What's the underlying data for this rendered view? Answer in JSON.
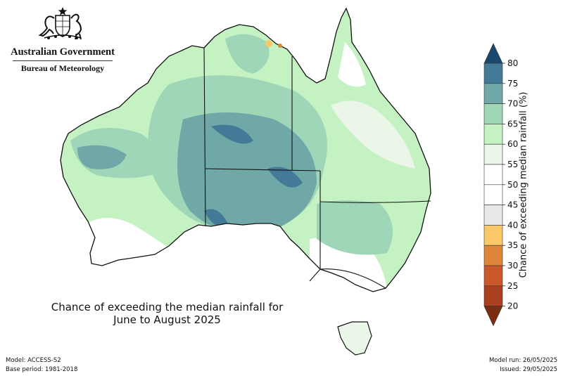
{
  "header": {
    "gov_title": "Australian Government",
    "agency": "Bureau of Meteorology",
    "crest_icon": "coat-of-arms-icon"
  },
  "map": {
    "caption_line1": "Chance of exceeding the median rainfall for",
    "caption_line2": "June to August 2025",
    "region": "Australia",
    "borders": [
      "WA",
      "NT",
      "SA",
      "QLD",
      "NSW",
      "VIC",
      "TAS"
    ]
  },
  "legend": {
    "title": "Chance of exceeding median rainfall (%)",
    "ticks": [
      "20",
      "25",
      "30",
      "35",
      "40",
      "45",
      "50",
      "55",
      "60",
      "65",
      "70",
      "75",
      "80"
    ],
    "bins": [
      {
        "range": "<20",
        "color": "#7b2d12"
      },
      {
        "range": "20-25",
        "color": "#a9401f"
      },
      {
        "range": "25-30",
        "color": "#c9582a"
      },
      {
        "range": "30-35",
        "color": "#e0843a"
      },
      {
        "range": "35-40",
        "color": "#fbc869"
      },
      {
        "range": "40-45",
        "color": "#e8e8e8"
      },
      {
        "range": "45-50",
        "color": "#ffffff"
      },
      {
        "range": "50-55",
        "color": "#ffffff"
      },
      {
        "range": "55-60",
        "color": "#e9f6e8"
      },
      {
        "range": "60-65",
        "color": "#c4f2c2"
      },
      {
        "range": "65-70",
        "color": "#9fd6b8"
      },
      {
        "range": "70-75",
        "color": "#6fa8a6"
      },
      {
        "range": "75-80",
        "color": "#437a98"
      },
      {
        "range": ">80",
        "color": "#19486e"
      }
    ]
  },
  "footer": {
    "model": "Model: ACCESS-S2",
    "base_period": "Base period: 1981-2018",
    "model_run": "Model run: 26/05/2025",
    "issued": "Issued: 29/05/2025"
  }
}
